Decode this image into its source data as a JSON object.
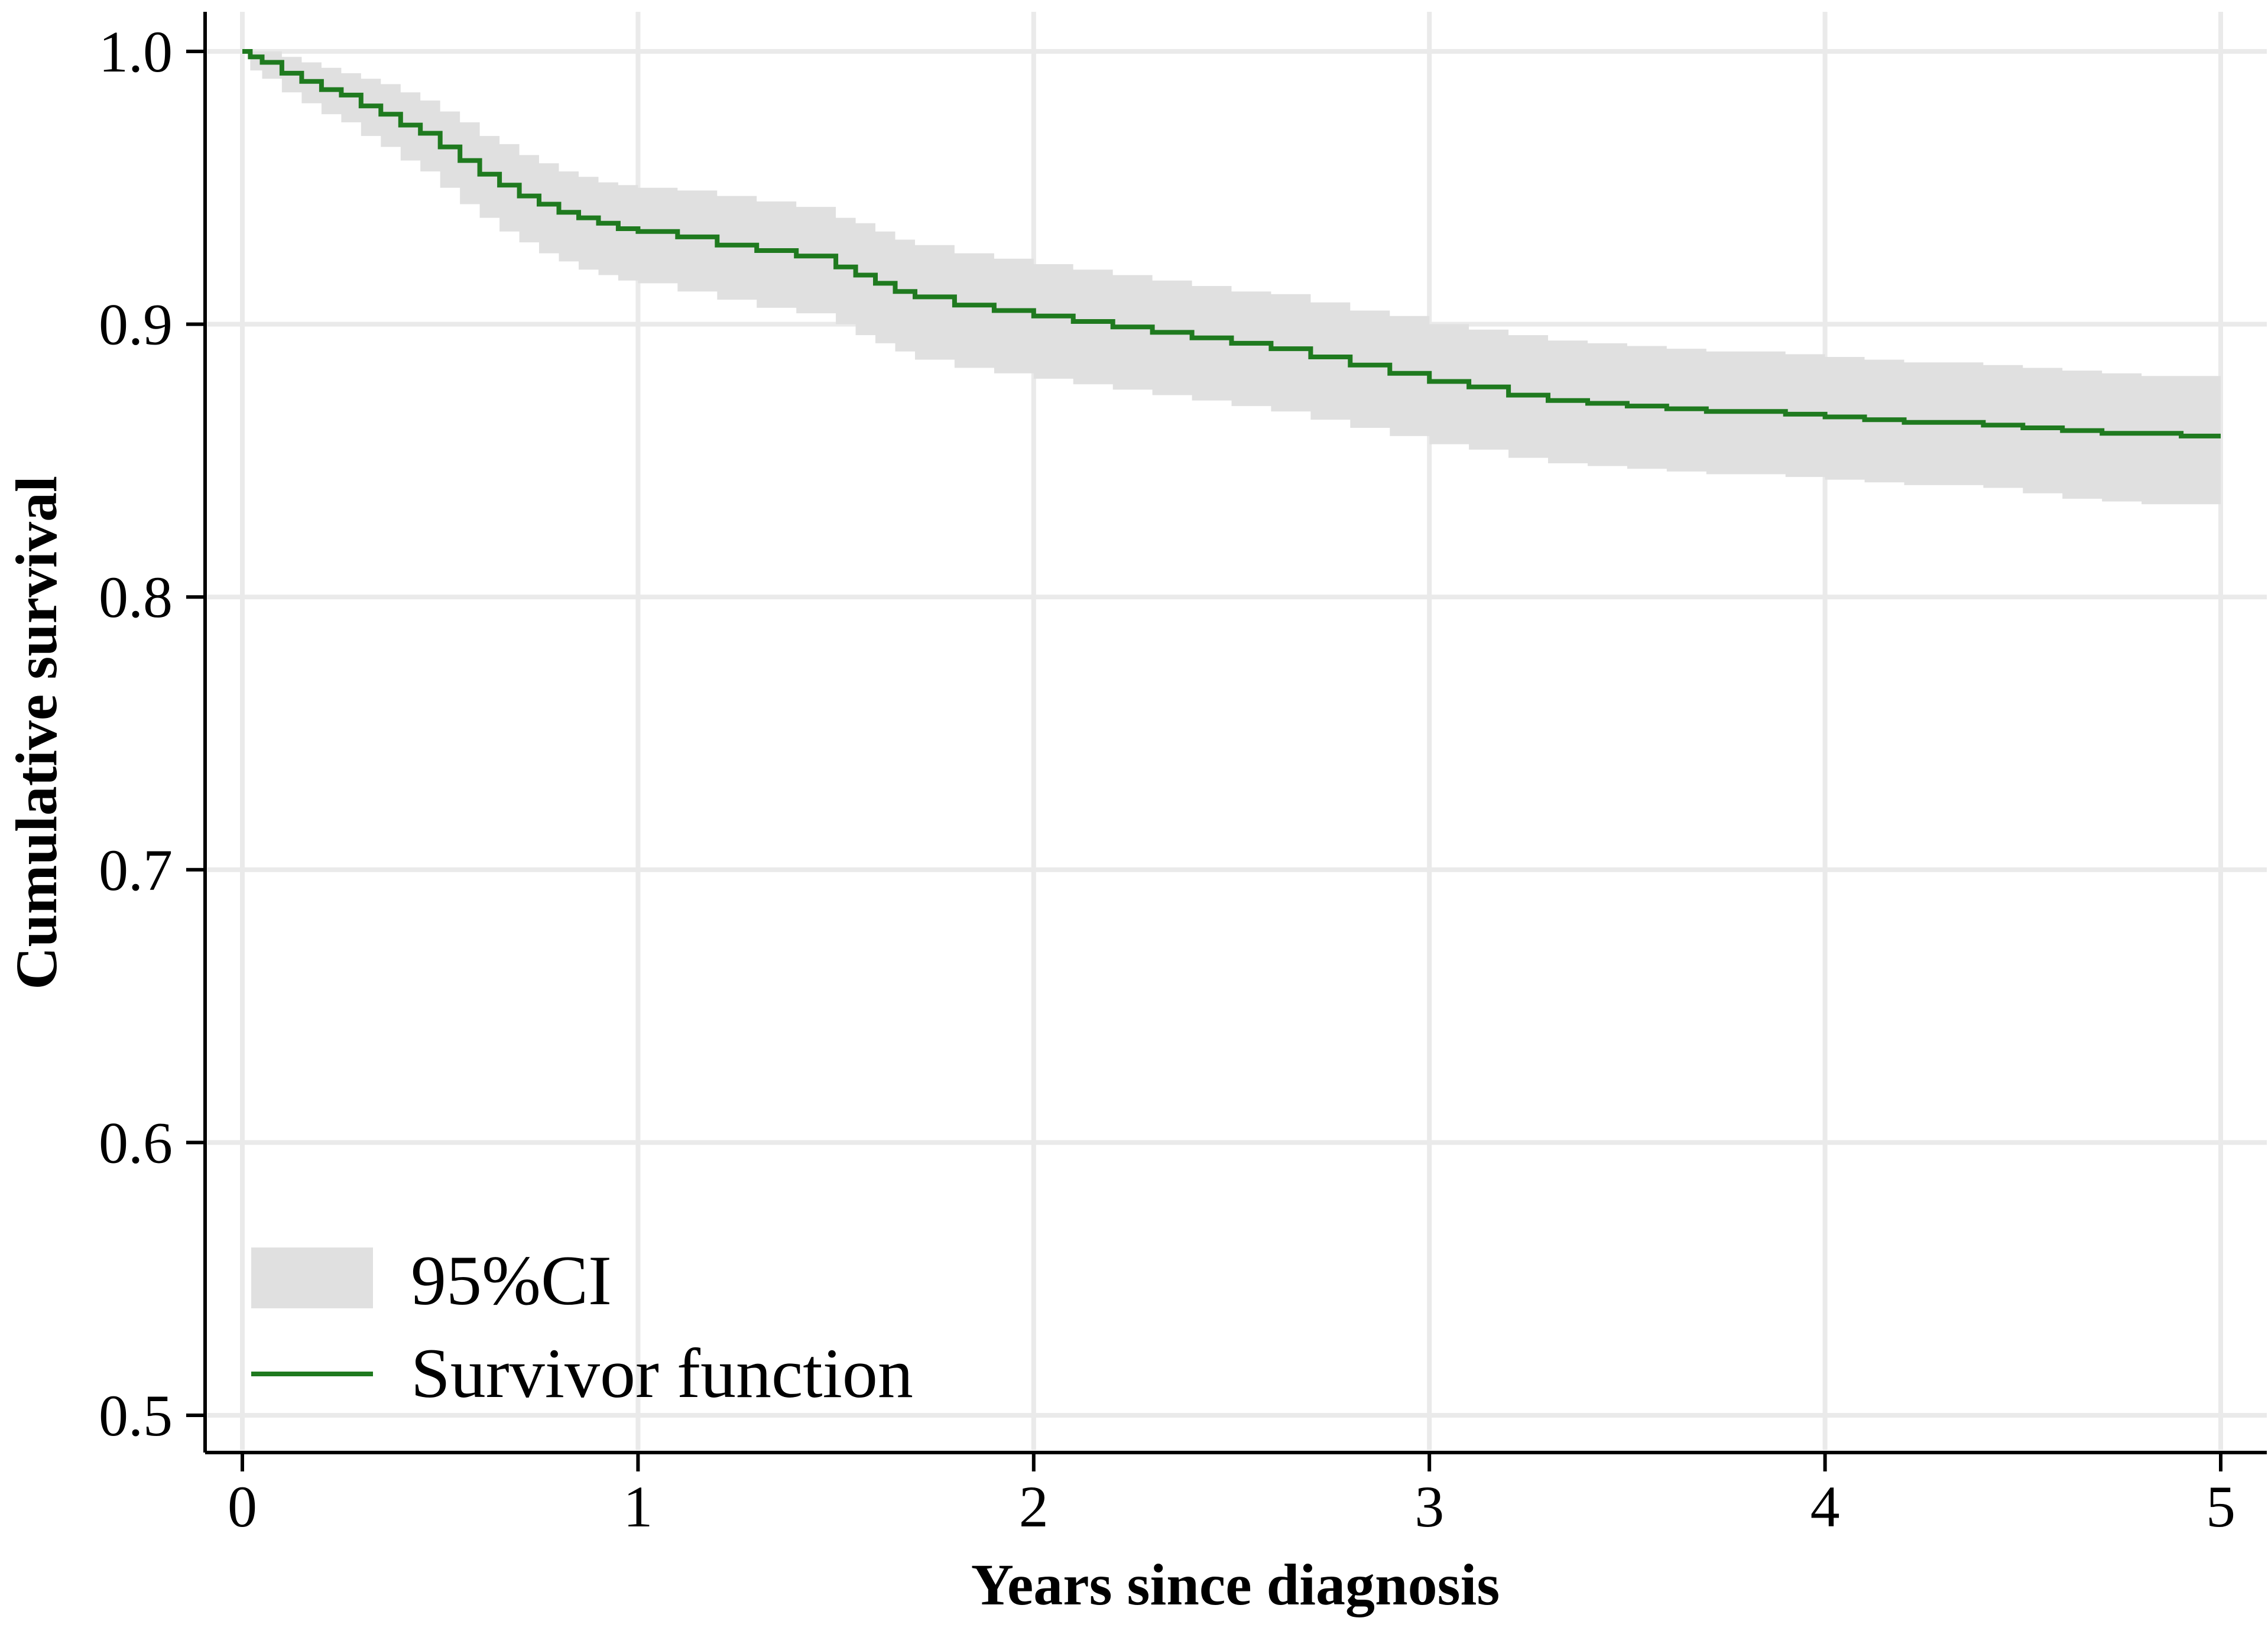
{
  "chart_data": {
    "type": "line",
    "title": "",
    "xlabel": "Years since diagnosis",
    "ylabel": "Cumulative survival",
    "xlim": [
      0,
      5
    ],
    "ylim": [
      0.5,
      1.0
    ],
    "x_ticks": [
      0,
      1,
      2,
      3,
      4,
      5
    ],
    "x_tick_labels": [
      "0",
      "1",
      "2",
      "3",
      "4",
      "5"
    ],
    "y_ticks": [
      0.5,
      0.6,
      0.7,
      0.8,
      0.9,
      1.0
    ],
    "y_tick_labels": [
      "0.5",
      "0.6",
      "0.7",
      "0.8",
      "0.9",
      "1.0"
    ],
    "grid": true,
    "legend_position": "bottom-left",
    "series": [
      {
        "name": "Survivor function",
        "style": "step",
        "color": "#1f7a1f",
        "x": [
          0,
          0.02,
          0.05,
          0.1,
          0.15,
          0.2,
          0.25,
          0.3,
          0.35,
          0.4,
          0.45,
          0.5,
          0.55,
          0.6,
          0.65,
          0.7,
          0.75,
          0.8,
          0.85,
          0.9,
          0.95,
          1.0,
          1.1,
          1.2,
          1.3,
          1.4,
          1.5,
          1.55,
          1.6,
          1.65,
          1.7,
          1.8,
          1.9,
          2.0,
          2.1,
          2.2,
          2.3,
          2.4,
          2.5,
          2.6,
          2.7,
          2.8,
          2.9,
          3.0,
          3.1,
          3.2,
          3.3,
          3.4,
          3.5,
          3.6,
          3.7,
          3.8,
          3.9,
          4.0,
          4.1,
          4.2,
          4.3,
          4.4,
          4.5,
          4.6,
          4.7,
          4.8,
          4.9,
          5.0
        ],
        "y": [
          1.0,
          0.998,
          0.996,
          0.992,
          0.989,
          0.986,
          0.984,
          0.98,
          0.977,
          0.973,
          0.97,
          0.965,
          0.96,
          0.955,
          0.951,
          0.947,
          0.944,
          0.941,
          0.939,
          0.937,
          0.935,
          0.934,
          0.932,
          0.929,
          0.927,
          0.925,
          0.921,
          0.918,
          0.915,
          0.912,
          0.91,
          0.907,
          0.905,
          0.903,
          0.901,
          0.899,
          0.897,
          0.895,
          0.893,
          0.891,
          0.888,
          0.885,
          0.882,
          0.879,
          0.877,
          0.874,
          0.872,
          0.871,
          0.87,
          0.869,
          0.868,
          0.868,
          0.867,
          0.866,
          0.865,
          0.864,
          0.864,
          0.863,
          0.862,
          0.861,
          0.86,
          0.86,
          0.859,
          0.859
        ]
      }
    ],
    "bands": [
      {
        "name": "95%CI",
        "color": "#e0e0e0",
        "x": [
          0,
          0.02,
          0.05,
          0.1,
          0.15,
          0.2,
          0.25,
          0.3,
          0.35,
          0.4,
          0.45,
          0.5,
          0.55,
          0.6,
          0.65,
          0.7,
          0.75,
          0.8,
          0.85,
          0.9,
          0.95,
          1.0,
          1.1,
          1.2,
          1.3,
          1.4,
          1.5,
          1.55,
          1.6,
          1.65,
          1.7,
          1.8,
          1.9,
          2.0,
          2.1,
          2.2,
          2.3,
          2.4,
          2.5,
          2.6,
          2.7,
          2.8,
          2.9,
          3.0,
          3.1,
          3.2,
          3.3,
          3.4,
          3.5,
          3.6,
          3.7,
          3.8,
          3.9,
          4.0,
          4.1,
          4.2,
          4.3,
          4.4,
          4.5,
          4.6,
          4.7,
          4.8,
          4.9,
          5.0
        ],
        "lower": [
          1.0,
          0.993,
          0.99,
          0.985,
          0.981,
          0.977,
          0.974,
          0.969,
          0.965,
          0.96,
          0.956,
          0.95,
          0.944,
          0.939,
          0.934,
          0.93,
          0.926,
          0.923,
          0.92,
          0.918,
          0.916,
          0.915,
          0.912,
          0.909,
          0.906,
          0.904,
          0.9,
          0.896,
          0.893,
          0.89,
          0.887,
          0.884,
          0.882,
          0.88,
          0.878,
          0.876,
          0.874,
          0.872,
          0.87,
          0.868,
          0.865,
          0.862,
          0.859,
          0.856,
          0.854,
          0.851,
          0.849,
          0.848,
          0.847,
          0.846,
          0.845,
          0.845,
          0.844,
          0.843,
          0.842,
          0.841,
          0.841,
          0.84,
          0.838,
          0.836,
          0.835,
          0.834,
          0.834,
          0.834
        ],
        "upper": [
          1.0,
          1.0,
          1.0,
          0.998,
          0.996,
          0.994,
          0.992,
          0.99,
          0.988,
          0.985,
          0.982,
          0.978,
          0.974,
          0.969,
          0.966,
          0.962,
          0.959,
          0.956,
          0.954,
          0.952,
          0.951,
          0.95,
          0.949,
          0.947,
          0.945,
          0.943,
          0.939,
          0.937,
          0.934,
          0.931,
          0.929,
          0.926,
          0.924,
          0.922,
          0.92,
          0.918,
          0.916,
          0.914,
          0.912,
          0.911,
          0.908,
          0.905,
          0.903,
          0.9,
          0.898,
          0.896,
          0.894,
          0.893,
          0.892,
          0.891,
          0.89,
          0.89,
          0.889,
          0.888,
          0.887,
          0.886,
          0.886,
          0.885,
          0.884,
          0.883,
          0.882,
          0.881,
          0.881,
          0.881
        ]
      }
    ]
  },
  "legend": {
    "items": [
      {
        "label": "95%CI",
        "kind": "band",
        "color": "#e0e0e0"
      },
      {
        "label": "Survivor function",
        "kind": "line",
        "color": "#1f7a1f"
      }
    ]
  }
}
